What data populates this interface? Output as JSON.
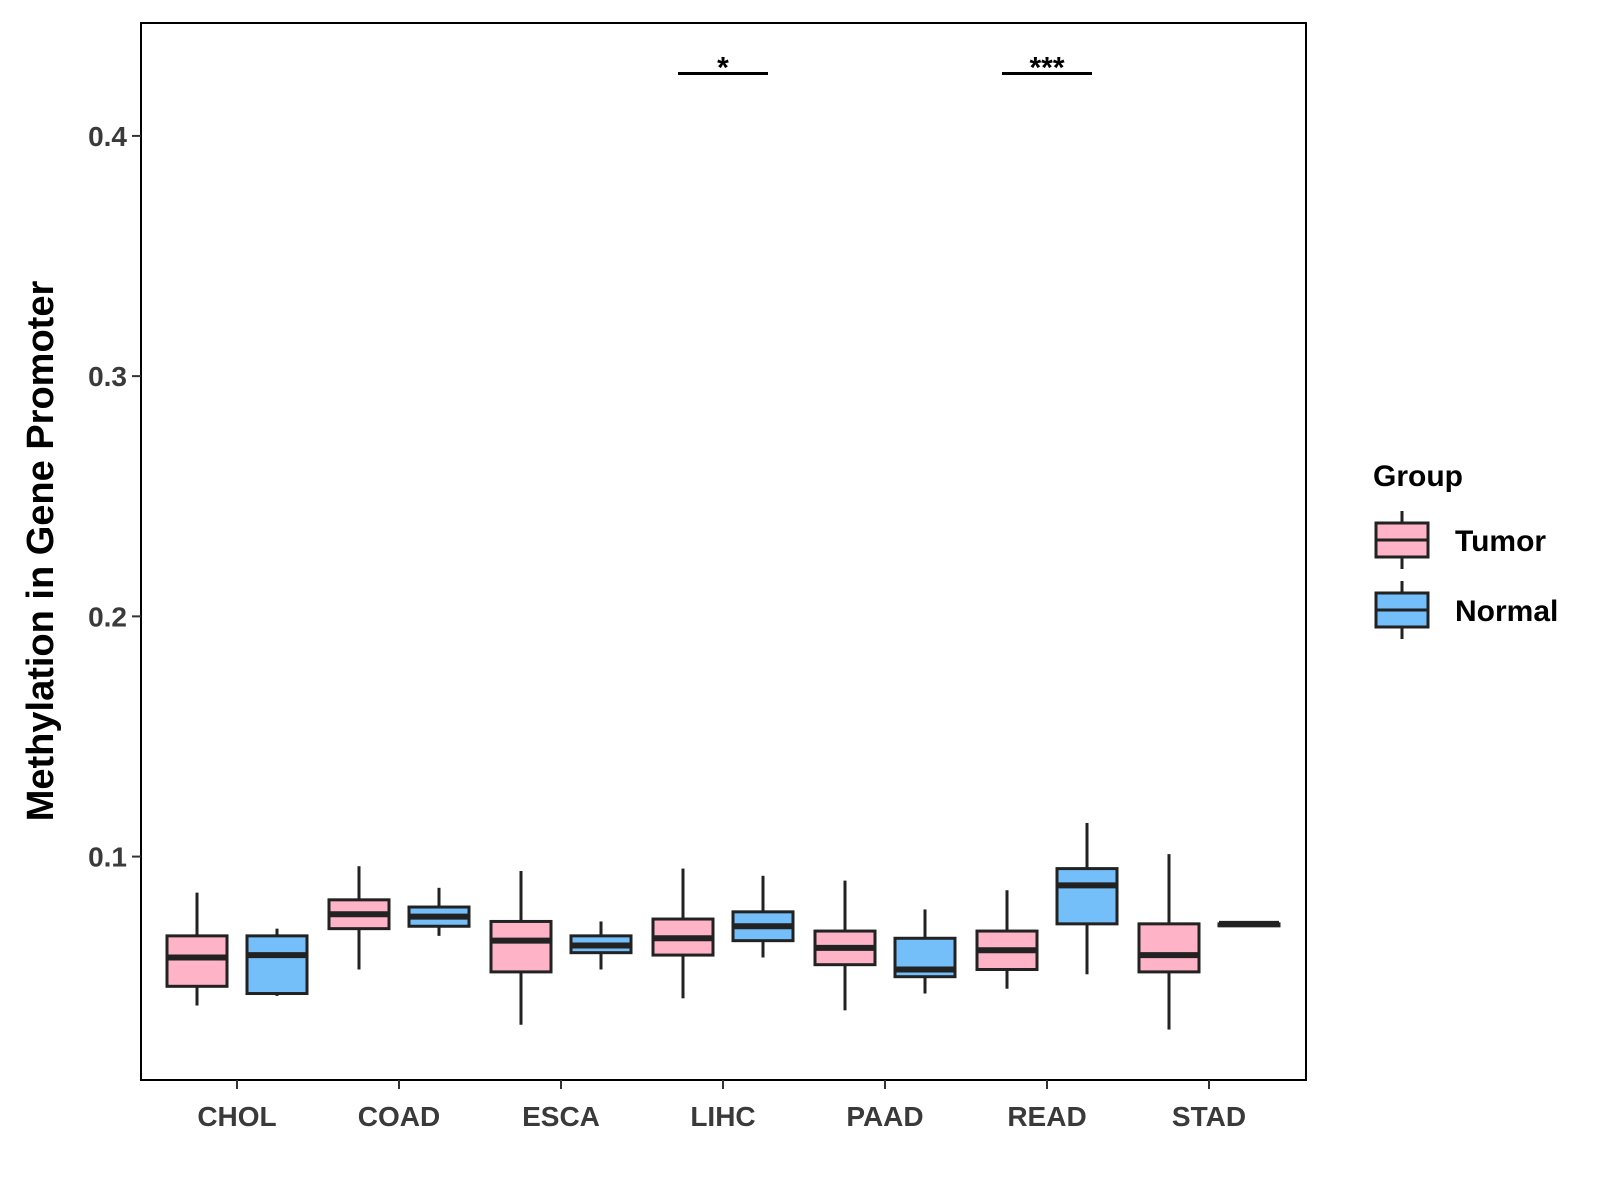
{
  "chart_data": {
    "type": "boxplot",
    "title": "",
    "xlabel": "",
    "ylabel": "Methylation in Gene Promoter",
    "ylim": [
      0.007,
      0.447
    ],
    "yticks": [
      0.1,
      0.2,
      0.3,
      0.4
    ],
    "ytick_labels": [
      "0.1",
      "0.2",
      "0.3",
      "0.4"
    ],
    "categories": [
      "CHOL",
      "COAD",
      "ESCA",
      "LIHC",
      "PAAD",
      "READ",
      "STAD"
    ],
    "legend": {
      "title": "Group",
      "position": "right",
      "entries": [
        {
          "name": "Tumor",
          "color": "#FFB3C6"
        },
        {
          "name": "Normal",
          "color": "#74BFFA"
        }
      ]
    },
    "series": [
      {
        "name": "Tumor",
        "color": "#FFB3C6",
        "boxes": [
          {
            "category": "CHOL",
            "min": 0.038,
            "q1": 0.046,
            "median": 0.058,
            "q3": 0.067,
            "max": 0.085
          },
          {
            "category": "COAD",
            "min": 0.053,
            "q1": 0.07,
            "median": 0.076,
            "q3": 0.082,
            "max": 0.096
          },
          {
            "category": "ESCA",
            "min": 0.03,
            "q1": 0.052,
            "median": 0.065,
            "q3": 0.073,
            "max": 0.094
          },
          {
            "category": "LIHC",
            "min": 0.041,
            "q1": 0.059,
            "median": 0.066,
            "q3": 0.074,
            "max": 0.095
          },
          {
            "category": "PAAD",
            "min": 0.036,
            "q1": 0.055,
            "median": 0.062,
            "q3": 0.069,
            "max": 0.09
          },
          {
            "category": "READ",
            "min": 0.045,
            "q1": 0.053,
            "median": 0.061,
            "q3": 0.069,
            "max": 0.086
          },
          {
            "category": "STAD",
            "min": 0.028,
            "q1": 0.052,
            "median": 0.059,
            "q3": 0.072,
            "max": 0.101
          }
        ]
      },
      {
        "name": "Normal",
        "color": "#74BFFA",
        "boxes": [
          {
            "category": "CHOL",
            "min": 0.042,
            "q1": 0.043,
            "median": 0.059,
            "q3": 0.067,
            "max": 0.07
          },
          {
            "category": "COAD",
            "min": 0.067,
            "q1": 0.071,
            "median": 0.075,
            "q3": 0.079,
            "max": 0.087
          },
          {
            "category": "ESCA",
            "min": 0.053,
            "q1": 0.06,
            "median": 0.063,
            "q3": 0.067,
            "max": 0.073
          },
          {
            "category": "LIHC",
            "min": 0.058,
            "q1": 0.065,
            "median": 0.071,
            "q3": 0.077,
            "max": 0.092
          },
          {
            "category": "PAAD",
            "min": 0.043,
            "q1": 0.05,
            "median": 0.053,
            "q3": 0.066,
            "max": 0.078
          },
          {
            "category": "READ",
            "min": 0.051,
            "q1": 0.072,
            "median": 0.088,
            "q3": 0.095,
            "max": 0.114
          },
          {
            "category": "STAD",
            "min": 0.072,
            "q1": 0.072,
            "median": 0.072,
            "q3": 0.072,
            "max": 0.072
          }
        ]
      }
    ],
    "annotations": [
      {
        "category": "LIHC",
        "label": "*",
        "y": 0.426
      },
      {
        "category": "READ",
        "label": "***",
        "y": 0.426
      }
    ]
  }
}
